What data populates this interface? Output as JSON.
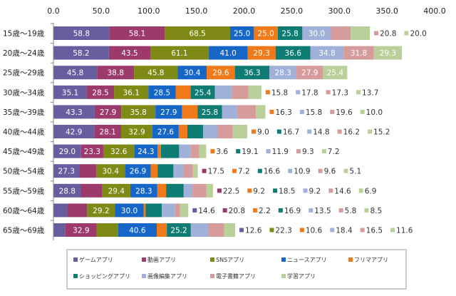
{
  "chart_data": {
    "type": "bar",
    "orientation": "horizontal",
    "stacked": true,
    "title": "",
    "xlabel": "",
    "ylabel": "",
    "xlim": [
      0,
      400
    ],
    "x_ticks": [
      "0.0",
      "50.0",
      "100.0",
      "150.0",
      "200.0",
      "250.0",
      "300.0",
      "350.0",
      "400.0"
    ],
    "x_axis_position": "top",
    "grid": false,
    "legend_position": "bottom",
    "categories": [
      "15歳〜19歳",
      "20歳〜24歳",
      "25歳〜29歳",
      "30歳〜34歳",
      "35歳〜39歳",
      "40歳〜44歳",
      "45歳〜49歳",
      "50歳〜54歳",
      "55歳〜59歳",
      "60歳〜64歳",
      "65歳〜69歳"
    ],
    "series": [
      {
        "name": "ゲームアプリ",
        "color": "#675ea0",
        "values": [
          58.8,
          58.2,
          45.8,
          35.1,
          43.3,
          42.9,
          29.0,
          27.3,
          28.8,
          14.6,
          12.6
        ]
      },
      {
        "name": "動画アプリ",
        "color": "#9c3a6c",
        "values": [
          58.1,
          43.5,
          38.8,
          28.5,
          27.9,
          28.1,
          23.3,
          17.5,
          22.5,
          20.8,
          32.9
        ]
      },
      {
        "name": "SNSアプリ",
        "color": "#7e8a15",
        "values": [
          68.5,
          61.1,
          45.8,
          36.1,
          35.8,
          32.9,
          32.6,
          30.4,
          29.4,
          29.2,
          22.3
        ]
      },
      {
        "name": "ニュースアプリ",
        "color": "#1566c6",
        "values": [
          25.0,
          41.0,
          30.4,
          28.5,
          27.9,
          27.6,
          24.3,
          26.9,
          28.3,
          30.0,
          40.6
        ]
      },
      {
        "name": "フリマアプリ",
        "color": "#f07a1a",
        "values": [
          25.0,
          29.3,
          29.6,
          15.8,
          16.3,
          9.0,
          3.6,
          7.2,
          9.2,
          2.2,
          10.6
        ]
      },
      {
        "name": "ショッピングアプリ",
        "color": "#0f7c73",
        "values": [
          25.8,
          36.6,
          36.3,
          25.4,
          25.8,
          16.7,
          19.1,
          16.6,
          18.5,
          16.9,
          25.2
        ]
      },
      {
        "name": "画像編集アプリ",
        "color": "#9fb1d9",
        "values": [
          30.0,
          34.8,
          28.3,
          17.8,
          15.8,
          14.8,
          11.9,
          10.9,
          9.2,
          13.5,
          18.4
        ]
      },
      {
        "name": "電子書籍アプリ",
        "color": "#d59c9b",
        "values": [
          20.8,
          31.8,
          27.9,
          17.3,
          19.6,
          16.2,
          9.3,
          9.6,
          14.6,
          5.8,
          16.5
        ]
      },
      {
        "name": "学習アプリ",
        "color": "#b9d09a",
        "values": [
          20.0,
          29.3,
          25.4,
          13.7,
          10.0,
          15.2,
          7.2,
          5.1,
          6.9,
          8.5,
          11.6
        ]
      }
    ]
  }
}
